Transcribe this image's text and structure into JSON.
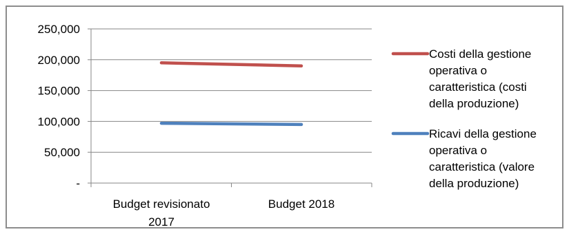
{
  "chart_data": {
    "type": "line",
    "title": "",
    "xlabel": "",
    "ylabel": "",
    "categories": [
      "Budget revisionato 2017",
      "Budget 2018"
    ],
    "category_lines": [
      [
        "Budget revisionato",
        "2017"
      ],
      [
        "Budget 2018"
      ]
    ],
    "ylim": [
      0,
      250000
    ],
    "yticks": [
      0,
      50000,
      100000,
      150000,
      200000,
      250000
    ],
    "ytick_labels": [
      "-",
      "50,000",
      "100,000",
      "150,000",
      "200,000",
      "250,000"
    ],
    "grid": true,
    "legend_position": "right",
    "series": [
      {
        "name": "Costi della gestione operativa o caratteristica (costi della produzione)",
        "legend_lines": [
          "Costi della gestione",
          "operativa o",
          "caratteristica (costi",
          "della produzione)"
        ],
        "color": "#c0504d",
        "values": [
          195000,
          190000
        ]
      },
      {
        "name": "Ricavi della gestione operativa o caratteristica (valore della produzione)",
        "legend_lines": [
          "Ricavi della gestione",
          "operativa o",
          "caratteristica (valore",
          "della produzione)"
        ],
        "color": "#4f81bd",
        "values": [
          97000,
          95000
        ]
      }
    ]
  }
}
